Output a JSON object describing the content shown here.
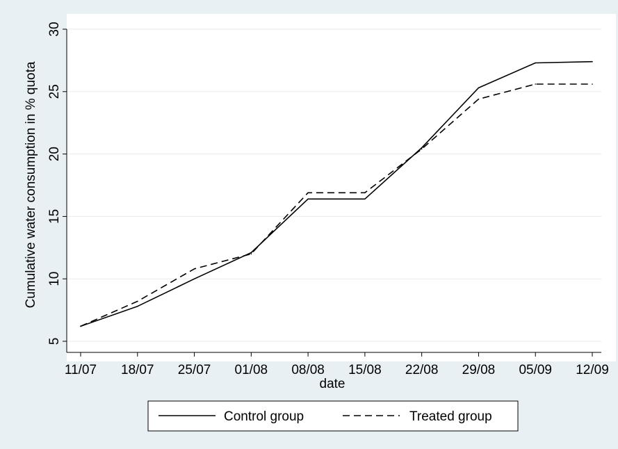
{
  "chart_data": {
    "type": "line",
    "title": "",
    "xlabel": "date",
    "ylabel": "Cumulative water consumption in % quota",
    "x_tick_labels": [
      "11/07",
      "18/07",
      "25/07",
      "01/08",
      "08/08",
      "15/08",
      "22/08",
      "29/08",
      "05/09",
      "12/09"
    ],
    "y_ticks": [
      5,
      10,
      15,
      20,
      25,
      30
    ],
    "ylim": [
      5,
      30
    ],
    "xlim": [
      0,
      9
    ],
    "grid": true,
    "legend_position": "bottom",
    "series": [
      {
        "name": "Control group",
        "style": "solid",
        "x": [
          0,
          1,
          2,
          3,
          4,
          5,
          6,
          7,
          8,
          9
        ],
        "values": [
          6.2,
          7.8,
          10.0,
          12.1,
          16.4,
          16.4,
          20.5,
          25.3,
          27.3,
          27.4
        ]
      },
      {
        "name": "Treated group",
        "style": "dashed",
        "x": [
          0,
          1,
          2,
          3,
          4,
          5,
          6,
          7,
          8,
          9
        ],
        "values": [
          6.2,
          8.2,
          10.8,
          12.0,
          16.9,
          16.9,
          20.4,
          24.4,
          25.6,
          25.6
        ]
      }
    ]
  },
  "colors": {
    "page_background": "#e9f0f4",
    "plot_background": "#ffffff",
    "line": "#000000",
    "grid": "#eaeaea"
  }
}
